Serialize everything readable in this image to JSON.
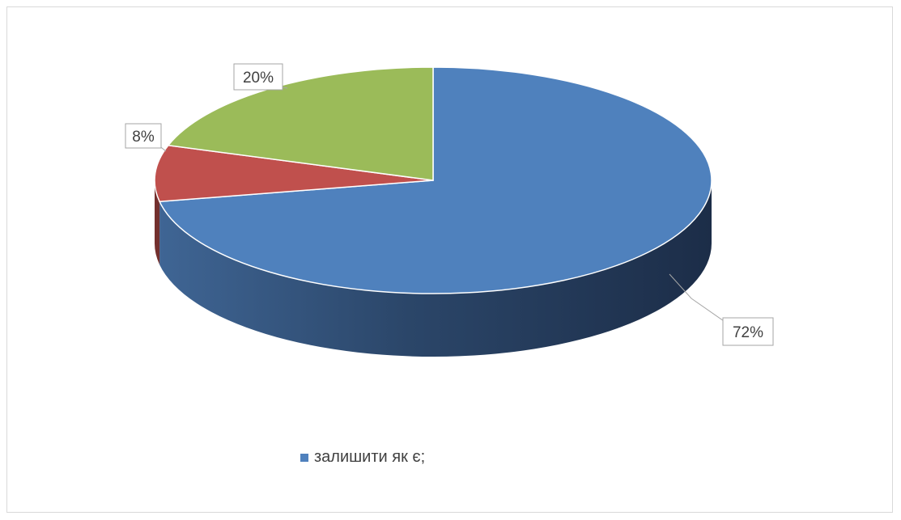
{
  "chart_data": {
    "type": "pie",
    "title": "",
    "categories": [
      "залишити як є;",
      "",
      ""
    ],
    "values": [
      72,
      8,
      20
    ],
    "labels": [
      "72%",
      "8%",
      "20%"
    ],
    "colors": [
      "#4f81bd",
      "#c0504d",
      "#9bbb59"
    ],
    "style": "3d",
    "legend_position": "bottom"
  },
  "legend": {
    "items": [
      {
        "label": "залишити як є;",
        "color": "#4f81bd"
      }
    ]
  }
}
